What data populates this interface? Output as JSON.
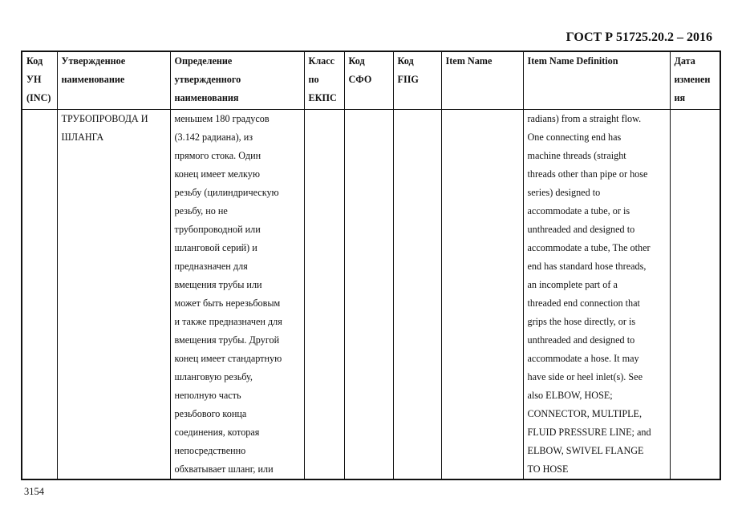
{
  "header": {
    "doc_code": "ГОСТ Р 51725.20.2 – 2016"
  },
  "table": {
    "columns": [
      [
        "Код",
        "УН",
        "(INC)"
      ],
      [
        "Утвержденное",
        "наименование"
      ],
      [
        "Определение",
        "утвержденного",
        "наименования"
      ],
      [
        "Класс",
        "по",
        "ЕКПС"
      ],
      [
        "Код",
        "СФО"
      ],
      [
        "Код",
        "FIIG"
      ],
      [
        "Item Name"
      ],
      [
        "Item Name Definition"
      ],
      [
        "Дата",
        "изменен",
        "ия"
      ]
    ],
    "row": {
      "inc": [],
      "approved_name": [
        "ТРУБОПРОВОДА И",
        "ШЛАНГА"
      ],
      "definition_ru": [
        "меньшем 180 градусов",
        "(3.142 радиана), из",
        "прямого стока. Один",
        "конец  имеет мелкую",
        "резьбу (цилиндрическую",
        "резьбу, но не",
        "трубопроводной или",
        "шланговой серий) и",
        "предназначен для",
        "вмещения трубы или",
        "может быть нерезьбовым",
        "и также предназначен для",
        "вмещения трубы. Другой",
        "конец имеет стандартную",
        "шланговую резьбу,",
        "неполную часть",
        "резьбового конца",
        "соединения, которая",
        "непосредственно",
        "обхватывает шланг, или"
      ],
      "class": [],
      "sfo": [],
      "fiig": [],
      "item_name": [],
      "definition_en": [
        "radians) from a straight flow.",
        "One connecting end has",
        "machine threads (straight",
        "threads other than pipe or hose",
        "series) designed to",
        "accommodate a tube, or is",
        "unthreaded and designed to",
        "accommodate a tube, The other",
        "end has standard hose threads,",
        "an incomplete part of a",
        "threaded end connection that",
        "grips the hose directly, or is",
        "unthreaded and designed to",
        "accommodate a hose. It may",
        "have side or heel inlet(s). See",
        "also ELBOW, HOSE;",
        "CONNECTOR, MULTIPLE,",
        "FLUID PRESSURE LINE; and",
        "ELBOW, SWIVEL FLANGE",
        "TO HOSE"
      ],
      "date": []
    }
  },
  "footer": {
    "page_number": "3154"
  }
}
